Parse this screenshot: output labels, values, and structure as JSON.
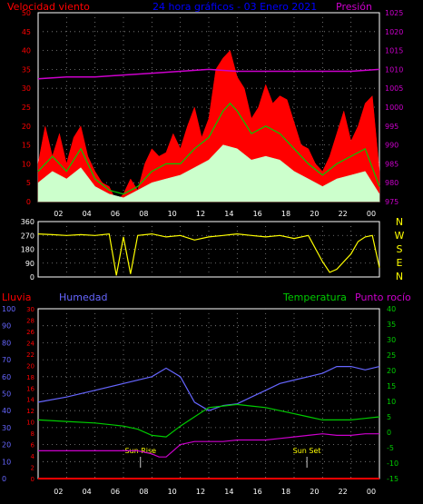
{
  "colors": {
    "wind": "#ff0000",
    "gust": "#00cc00",
    "avg": "#ccffcc",
    "pressure": "#cc00cc",
    "direction": "#ffff00",
    "humidity": "#6666ff",
    "temperature": "#00cc00",
    "dewpoint": "#cc00cc",
    "rain": "#ff0000",
    "title": "#0000ff",
    "axis": "#ffffff"
  },
  "chart_data": [
    {
      "type": "line",
      "title": "24 hora gráficos - 03 Enero 2021",
      "left_label": "Velocidad viento",
      "right_label": "Presión",
      "xticks": [
        "02",
        "04",
        "06",
        "08",
        "10",
        "12",
        "14",
        "16",
        "18",
        "20",
        "22",
        "00"
      ],
      "y_left_ticks": [
        "0",
        "5",
        "10",
        "15",
        "20",
        "25",
        "30",
        "35",
        "40",
        "45",
        "50"
      ],
      "y_right_ticks": [
        "975",
        "980",
        "985",
        "990",
        "995",
        "1000",
        "1005",
        "1010",
        "1015",
        "1020",
        "1025"
      ],
      "y_left_range": [
        0,
        50
      ],
      "y_right_range": [
        975,
        1025
      ],
      "x_range": [
        0,
        24
      ],
      "grid": true,
      "series": [
        {
          "key": "wind_max",
          "values": [
            [
              0,
              10
            ],
            [
              0.5,
              20
            ],
            [
              1,
              12
            ],
            [
              1.5,
              18
            ],
            [
              2,
              10
            ],
            [
              2.5,
              17
            ],
            [
              3,
              20
            ],
            [
              3.5,
              12
            ],
            [
              4,
              8
            ],
            [
              4.5,
              5
            ],
            [
              5,
              4
            ],
            [
              5.5,
              0
            ],
            [
              6,
              2
            ],
            [
              6.5,
              6
            ],
            [
              7,
              3
            ],
            [
              7.5,
              10
            ],
            [
              8,
              14
            ],
            [
              8.5,
              12
            ],
            [
              9,
              13
            ],
            [
              9.5,
              18
            ],
            [
              10,
              14
            ],
            [
              10.5,
              20
            ],
            [
              11,
              25
            ],
            [
              11.5,
              17
            ],
            [
              12,
              22
            ],
            [
              12.5,
              35
            ],
            [
              13,
              38
            ],
            [
              13.5,
              40
            ],
            [
              14,
              33
            ],
            [
              14.5,
              30
            ],
            [
              15,
              22
            ],
            [
              15.5,
              25
            ],
            [
              16,
              31
            ],
            [
              16.5,
              26
            ],
            [
              17,
              28
            ],
            [
              17.5,
              27
            ],
            [
              18,
              21
            ],
            [
              18.5,
              15
            ],
            [
              19,
              14
            ],
            [
              19.5,
              10
            ],
            [
              20,
              8
            ],
            [
              20.5,
              12
            ],
            [
              21,
              18
            ],
            [
              21.5,
              24
            ],
            [
              22,
              16
            ],
            [
              22.5,
              20
            ],
            [
              23,
              26
            ],
            [
              23.5,
              28
            ],
            [
              24,
              8
            ]
          ]
        },
        {
          "key": "wind_gust",
          "values": [
            [
              0,
              8
            ],
            [
              1,
              12
            ],
            [
              2,
              8
            ],
            [
              3,
              14
            ],
            [
              4,
              6
            ],
            [
              5,
              3
            ],
            [
              6,
              2
            ],
            [
              7,
              4
            ],
            [
              8,
              8
            ],
            [
              9,
              10
            ],
            [
              10,
              10
            ],
            [
              11,
              14
            ],
            [
              12,
              17
            ],
            [
              13,
              24
            ],
            [
              13.5,
              26
            ],
            [
              14,
              24
            ],
            [
              15,
              18
            ],
            [
              16,
              20
            ],
            [
              17,
              18
            ],
            [
              18,
              14
            ],
            [
              19,
              10
            ],
            [
              20,
              7
            ],
            [
              21,
              10
            ],
            [
              22,
              12
            ],
            [
              23,
              14
            ],
            [
              24,
              4
            ]
          ]
        },
        {
          "key": "wind_avg",
          "values": [
            [
              0,
              5
            ],
            [
              1,
              8
            ],
            [
              2,
              6
            ],
            [
              3,
              9
            ],
            [
              4,
              4
            ],
            [
              5,
              2
            ],
            [
              6,
              1
            ],
            [
              7,
              3
            ],
            [
              8,
              5
            ],
            [
              9,
              6
            ],
            [
              10,
              7
            ],
            [
              11,
              9
            ],
            [
              12,
              11
            ],
            [
              13,
              15
            ],
            [
              14,
              14
            ],
            [
              15,
              11
            ],
            [
              16,
              12
            ],
            [
              17,
              11
            ],
            [
              18,
              8
            ],
            [
              19,
              6
            ],
            [
              20,
              4
            ],
            [
              21,
              6
            ],
            [
              22,
              7
            ],
            [
              23,
              8
            ],
            [
              24,
              2
            ]
          ]
        },
        {
          "key": "pressure",
          "values": [
            [
              0,
              1007.5
            ],
            [
              2,
              1008
            ],
            [
              4,
              1008
            ],
            [
              6,
              1008.5
            ],
            [
              8,
              1009
            ],
            [
              10,
              1009.5
            ],
            [
              12,
              1010
            ],
            [
              14,
              1009.5
            ],
            [
              16,
              1009.5
            ],
            [
              18,
              1009.5
            ],
            [
              20,
              1009.5
            ],
            [
              22,
              1009.5
            ],
            [
              24,
              1010
            ]
          ]
        }
      ]
    },
    {
      "type": "line",
      "right_labels": [
        "N",
        "W",
        "S",
        "E",
        "N"
      ],
      "y_left_ticks": [
        "0",
        "90",
        "180",
        "270",
        "360"
      ],
      "y_range": [
        0,
        360
      ],
      "x_range": [
        0,
        24
      ],
      "grid": true,
      "series": [
        {
          "key": "direction",
          "values": [
            [
              0,
              280
            ],
            [
              1,
              275
            ],
            [
              2,
              270
            ],
            [
              3,
              275
            ],
            [
              4,
              270
            ],
            [
              5,
              280
            ],
            [
              5.5,
              10
            ],
            [
              6,
              260
            ],
            [
              6.5,
              20
            ],
            [
              7,
              270
            ],
            [
              8,
              280
            ],
            [
              9,
              260
            ],
            [
              10,
              270
            ],
            [
              11,
              240
            ],
            [
              12,
              260
            ],
            [
              13,
              270
            ],
            [
              14,
              280
            ],
            [
              15,
              270
            ],
            [
              16,
              260
            ],
            [
              17,
              270
            ],
            [
              18,
              250
            ],
            [
              19,
              270
            ],
            [
              20,
              100
            ],
            [
              20.5,
              30
            ],
            [
              21,
              50
            ],
            [
              22,
              150
            ],
            [
              22.5,
              230
            ],
            [
              23,
              260
            ],
            [
              23.5,
              270
            ],
            [
              24,
              60
            ]
          ]
        }
      ]
    },
    {
      "type": "line",
      "left_label": "Lluvia",
      "humidity_label": "Humedad",
      "temp_label": "Temperatura",
      "dew_label": "Punto rocío",
      "xticks": [
        "02",
        "04",
        "06",
        "08",
        "10",
        "12",
        "14",
        "16",
        "18",
        "20",
        "22",
        "00"
      ],
      "humidity_ticks": [
        "0",
        "10",
        "20",
        "30",
        "40",
        "50",
        "60",
        "70",
        "80",
        "90",
        "100"
      ],
      "rain_ticks": [
        "0",
        "2",
        "4",
        "6",
        "8",
        "10",
        "12",
        "14",
        "16",
        "18",
        "20",
        "22",
        "24",
        "26",
        "28",
        "30"
      ],
      "temp_ticks": [
        "-15",
        "-10",
        "-5",
        "0",
        "5",
        "10",
        "15",
        "20",
        "25",
        "30",
        "35",
        "40"
      ],
      "humidity_range": [
        0,
        100
      ],
      "temp_range": [
        -15,
        40
      ],
      "x_range": [
        0,
        24
      ],
      "annotations": [
        {
          "label": "Sun Rise",
          "x": 7.2
        },
        {
          "label": "Sun Set",
          "x": 18.9
        }
      ],
      "grid": true,
      "series": [
        {
          "key": "humidity",
          "values": [
            [
              0,
              45
            ],
            [
              2,
              48
            ],
            [
              4,
              52
            ],
            [
              6,
              56
            ],
            [
              8,
              60
            ],
            [
              9,
              65
            ],
            [
              10,
              60
            ],
            [
              11,
              45
            ],
            [
              12,
              40
            ],
            [
              13,
              43
            ],
            [
              14,
              44
            ],
            [
              15,
              48
            ],
            [
              16,
              52
            ],
            [
              17,
              56
            ],
            [
              18,
              58
            ],
            [
              19,
              60
            ],
            [
              20,
              62
            ],
            [
              21,
              66
            ],
            [
              22,
              66
            ],
            [
              23,
              64
            ],
            [
              24,
              66
            ]
          ]
        },
        {
          "key": "temperature",
          "values": [
            [
              0,
              4
            ],
            [
              2,
              3.5
            ],
            [
              4,
              3
            ],
            [
              6,
              2
            ],
            [
              7,
              1
            ],
            [
              8,
              -1
            ],
            [
              9,
              -1.5
            ],
            [
              10,
              2
            ],
            [
              11,
              5
            ],
            [
              12,
              8
            ],
            [
              13,
              8.5
            ],
            [
              14,
              9
            ],
            [
              15,
              8.5
            ],
            [
              16,
              8
            ],
            [
              17,
              7
            ],
            [
              18,
              6
            ],
            [
              19,
              5
            ],
            [
              20,
              4
            ],
            [
              21,
              4
            ],
            [
              22,
              4
            ],
            [
              23,
              4.5
            ],
            [
              24,
              5
            ]
          ]
        },
        {
          "key": "dewpoint",
          "values": [
            [
              0,
              -6
            ],
            [
              2,
              -6
            ],
            [
              4,
              -6
            ],
            [
              6,
              -6
            ],
            [
              7,
              -6
            ],
            [
              8,
              -7
            ],
            [
              8.5,
              -8
            ],
            [
              9,
              -8
            ],
            [
              9.5,
              -6
            ],
            [
              10,
              -4
            ],
            [
              11,
              -3
            ],
            [
              12,
              -3
            ],
            [
              13,
              -3
            ],
            [
              14,
              -2.5
            ],
            [
              15,
              -2.5
            ],
            [
              16,
              -2.5
            ],
            [
              17,
              -2
            ],
            [
              18,
              -1.5
            ],
            [
              19,
              -1
            ],
            [
              20,
              -0.5
            ],
            [
              21,
              -1
            ],
            [
              22,
              -1
            ],
            [
              23,
              -0.5
            ],
            [
              24,
              -0.5
            ]
          ]
        },
        {
          "key": "rain",
          "values": [
            [
              0,
              0
            ],
            [
              24,
              0
            ]
          ]
        }
      ]
    }
  ]
}
